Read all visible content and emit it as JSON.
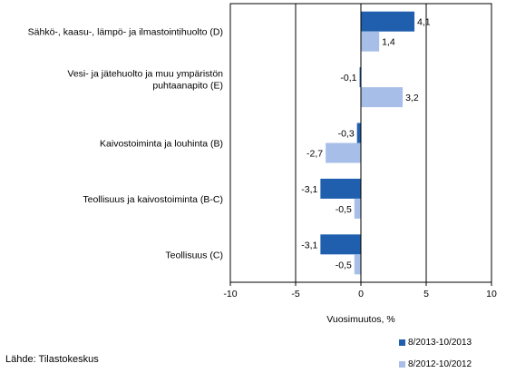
{
  "chart_data": {
    "type": "bar",
    "orientation": "horizontal",
    "categories": [
      "Sähkö-, kaasu-, lämpö- ja ilmastointihuolto (D)",
      "Vesi- ja jätehuolto ja muu ympäristön puhtaanapito (E)",
      "Kaivostoiminta ja louhinta (B)",
      "Teollisuus ja kaivostoiminta (B-C)",
      "Teollisuus (C)"
    ],
    "category_lines": [
      [
        "Sähkö-, kaasu-, lämpö- ja ilmastointihuolto (D)"
      ],
      [
        "Vesi- ja jätehuolto ja muu ympäristön",
        "puhtaanapito (E)"
      ],
      [
        "Kaivostoiminta ja louhinta (B)"
      ],
      [
        "Teollisuus ja kaivostoiminta (B-C)"
      ],
      [
        "Teollisuus (C)"
      ]
    ],
    "series": [
      {
        "name": "8/2013-10/2013",
        "color": "#1f5fad",
        "values": [
          4.1,
          -0.1,
          -0.3,
          -3.1,
          -3.1
        ],
        "labels": [
          "4,1",
          "-0,1",
          "-0,3",
          "-3,1",
          "-3,1"
        ]
      },
      {
        "name": "8/2012-10/2012",
        "color": "#a7bfe8",
        "values": [
          1.4,
          3.2,
          -2.7,
          -0.5,
          -0.5
        ],
        "labels": [
          "1,4",
          "3,2",
          "-2,7",
          "-0,5",
          "-0,5"
        ]
      }
    ],
    "xlim": [
      -10,
      10
    ],
    "xticks": [
      -10,
      -5,
      0,
      5,
      10
    ],
    "xtick_labels": [
      "-10",
      "-5",
      "0",
      "5",
      "10"
    ],
    "gridlines_at": [
      -5,
      5
    ],
    "xlabel": "Vuosimuutos, %",
    "ylabel": "",
    "title": "",
    "legend_position": "bottom-right"
  },
  "source": "Lähde: Tilastokeskus"
}
